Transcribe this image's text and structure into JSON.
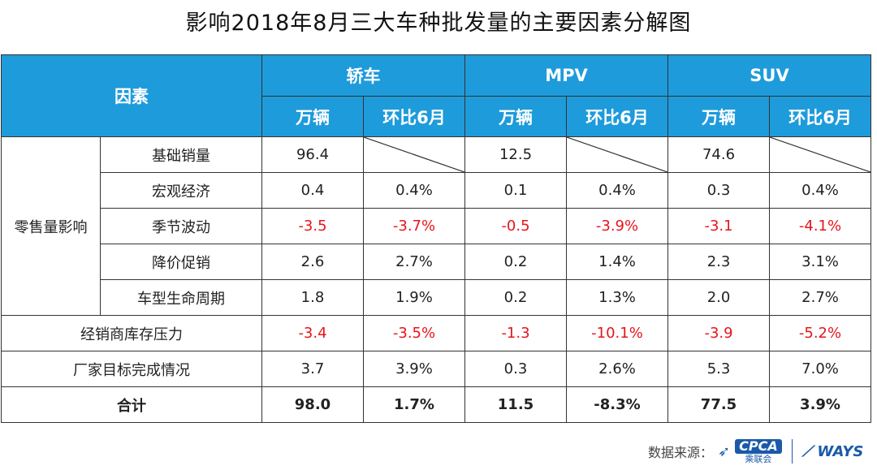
{
  "title": "影响2018年8月三大车种批发量的主要因素分解图",
  "header": {
    "factor": "因素",
    "groups": [
      "轿车",
      "MPV",
      "SUV"
    ],
    "sub_units": "万辆",
    "sub_mom": "环比6月"
  },
  "retail_group_label": "零售量影响",
  "rows": {
    "base": {
      "label": "基础销量",
      "sedan": "96.4",
      "mpv": "12.5",
      "suv": "74.6"
    },
    "macro": {
      "label": "宏观经济",
      "sedan_u": "0.4",
      "sedan_m": "0.4%",
      "mpv_u": "0.1",
      "mpv_m": "0.4%",
      "suv_u": "0.3",
      "suv_m": "0.4%"
    },
    "season": {
      "label": "季节波动",
      "sedan_u": "-3.5",
      "sedan_m": "-3.7%",
      "mpv_u": "-0.5",
      "mpv_m": "-3.9%",
      "suv_u": "-3.1",
      "suv_m": "-4.1%"
    },
    "price": {
      "label": "降价促销",
      "sedan_u": "2.6",
      "sedan_m": "2.7%",
      "mpv_u": "0.2",
      "mpv_m": "1.4%",
      "suv_u": "2.3",
      "suv_m": "3.1%"
    },
    "lifecycle": {
      "label": "车型生命周期",
      "sedan_u": "1.8",
      "sedan_m": "1.9%",
      "mpv_u": "0.2",
      "mpv_m": "1.3%",
      "suv_u": "2.0",
      "suv_m": "2.7%"
    },
    "dealer": {
      "label": "经销商库存压力",
      "sedan_u": "-3.4",
      "sedan_m": "-3.5%",
      "mpv_u": "-1.3",
      "mpv_m": "-10.1%",
      "suv_u": "-3.9",
      "suv_m": "-5.2%"
    },
    "target": {
      "label": "厂家目标完成情况",
      "sedan_u": "3.7",
      "sedan_m": "3.9%",
      "mpv_u": "0.3",
      "mpv_m": "2.6%",
      "suv_u": "5.3",
      "suv_m": "7.0%"
    },
    "total": {
      "label": "合计",
      "sedan_u": "98.0",
      "sedan_m": "1.7%",
      "mpv_u": "11.5",
      "mpv_m": "-8.3%",
      "suv_u": "77.5",
      "suv_m": "3.9%"
    }
  },
  "colors": {
    "header_bg": "#1e9bdb",
    "negative": "#e8141b",
    "brand": "#1a5aa8"
  },
  "source": {
    "label": "数据来源：",
    "cpca": "CPCA",
    "cpca_sub": "乘联会",
    "ways": "WAYS"
  }
}
